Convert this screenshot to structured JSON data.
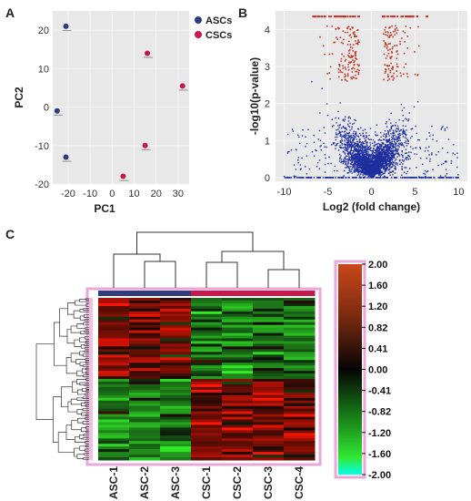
{
  "panels": {
    "a": "A",
    "b": "B",
    "c": "C"
  },
  "colors": {
    "asc": "#2f3e7a",
    "csc": "#c8174a",
    "volcano_sig": "#c0392b",
    "volcano_ns": "#1f2f9e",
    "plot_bg": "#e8e8e8"
  },
  "chart_data": [
    {
      "type": "scatter",
      "xlabel": "PC1",
      "ylabel": "PC2",
      "xlim": [
        -27,
        35
      ],
      "ylim": [
        -20,
        25
      ],
      "xticks": [
        -20,
        -10,
        0,
        10,
        20,
        30
      ],
      "yticks": [
        -20,
        -10,
        0,
        10,
        20
      ],
      "xtick_labels": [
        "-20",
        "-10",
        "0",
        "10",
        "20",
        "30"
      ],
      "ytick_labels": [
        "-20",
        "-10",
        "0",
        "10",
        "20"
      ],
      "legend": [
        "ASCs",
        "CSCs"
      ],
      "legend_position": "top-right",
      "series": [
        {
          "name": "ASCs",
          "points": [
            [
              -21,
              21
            ],
            [
              -25,
              -1
            ],
            [
              -21,
              -13
            ]
          ]
        },
        {
          "name": "CSCs",
          "points": [
            [
              16,
              14
            ],
            [
              32,
              5.5
            ],
            [
              15,
              -10
            ],
            [
              5,
              -18
            ]
          ]
        }
      ]
    },
    {
      "type": "scatter",
      "subtype": "volcano",
      "xlabel": "Log2 (fold change)",
      "ylabel": "-log10(p-value)",
      "xlim": [
        -11,
        11
      ],
      "ylim": [
        -0.1,
        4.5
      ],
      "xticks": [
        -10,
        -5,
        0,
        5,
        10
      ],
      "yticks": [
        0,
        1,
        2,
        3,
        4
      ],
      "xtick_labels": [
        "-10",
        "-5",
        "0",
        "5",
        "10"
      ],
      "ytick_labels": [
        "0",
        "1",
        "2",
        "3",
        "4"
      ]
    },
    {
      "type": "heatmap",
      "columns": [
        "ASC-1",
        "ASC-2",
        "ASC-3",
        "CSC-1",
        "CSC-2",
        "CSC-3",
        "CSC-4"
      ],
      "groups": [
        "ASCs",
        "ASCs",
        "ASCs",
        "CSCs",
        "CSCs",
        "CSCs",
        "CSCs"
      ],
      "colorbar_range": [
        -2.0,
        2.0
      ],
      "colorbar_ticks": [
        "2.00",
        "1.60",
        "1.20",
        "0.82",
        "0.41",
        "0.00",
        "-0.41",
        "-0.82",
        "-1.20",
        "-1.60",
        "-2.00"
      ]
    }
  ]
}
